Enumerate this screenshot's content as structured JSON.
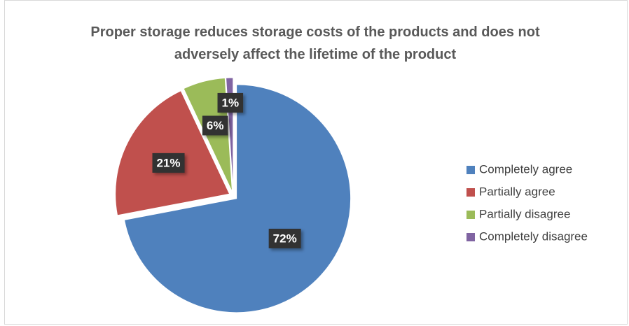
{
  "chart_data": {
    "type": "pie",
    "title": "Proper storage reduces storage costs of the products and does not adversely affect the lifetime of the product",
    "categories": [
      "Completely agree",
      "Partially agree",
      "Partially disagree",
      "Completely disagree"
    ],
    "values": [
      72,
      21,
      6,
      1
    ],
    "value_labels": [
      "72%",
      "21%",
      "6%",
      "1%"
    ],
    "colors": [
      "#4f81bd",
      "#c0504d",
      "#9bbb59",
      "#8064a2"
    ],
    "legend": "right"
  }
}
